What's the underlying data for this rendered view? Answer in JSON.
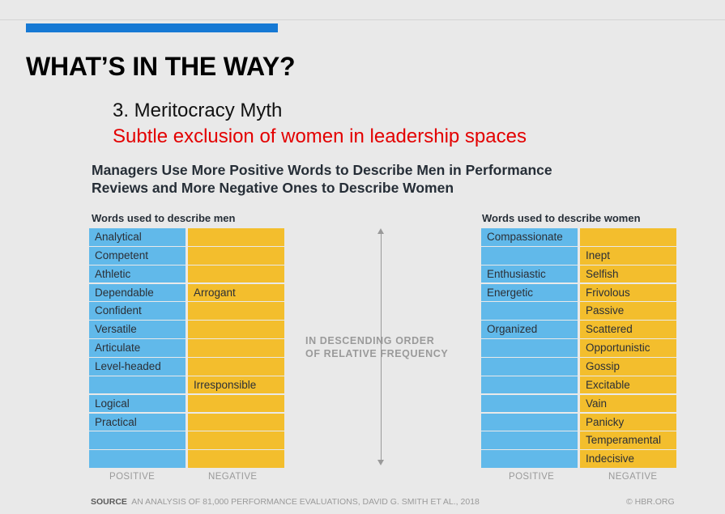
{
  "slide": {
    "title": "WHAT’S IN THE WAY?",
    "subtitle_1": "3. Meritocracy Myth",
    "subtitle_2": "Subtle exclusion of women in leadership spaces",
    "accent_color": "#1679d4",
    "subtitle_2_color": "#e30000"
  },
  "chart": {
    "heading_line1": "Managers Use More Positive Words to Describe Men in Performance",
    "heading_line2": "Reviews and More Negative Ones to Describe Women",
    "positive_color": "#61b9ea",
    "negative_color": "#f3be2d",
    "order_label_line1": "IN DESCENDING ORDER",
    "order_label_line2": "OF RELATIVE FREQUENCY",
    "men": {
      "title": "Words used to describe men",
      "positive_label": "POSITIVE",
      "negative_label": "NEGATIVE",
      "positive": [
        "Analytical",
        "Competent",
        "Athletic",
        "Dependable",
        "Confident",
        "Versatile",
        "Articulate",
        "Level-headed",
        "",
        "Logical",
        "Practical",
        "",
        ""
      ],
      "negative": [
        "",
        "",
        "",
        "Arrogant",
        "",
        "",
        "",
        "",
        "Irresponsible",
        "",
        "",
        "",
        ""
      ]
    },
    "women": {
      "title": "Words used to describe women",
      "positive_label": "POSITIVE",
      "negative_label": "NEGATIVE",
      "positive": [
        "Compassionate",
        "",
        "Enthusiastic",
        "Energetic",
        "",
        "Organized",
        "",
        "",
        "",
        "",
        "",
        "",
        ""
      ],
      "negative": [
        "",
        "Inept",
        "Selfish",
        "Frivolous",
        "Passive",
        "Scattered",
        "Opportunistic",
        "Gossip",
        "Excitable",
        "Vain",
        "Panicky",
        "Temperamental",
        "Indecisive"
      ]
    }
  },
  "source": {
    "label": "SOURCE",
    "text": "AN ANALYSIS OF 81,000 PERFORMANCE EVALUATIONS, DAVID G. SMITH ET AL., 2018",
    "credit": "© HBR.ORG"
  }
}
